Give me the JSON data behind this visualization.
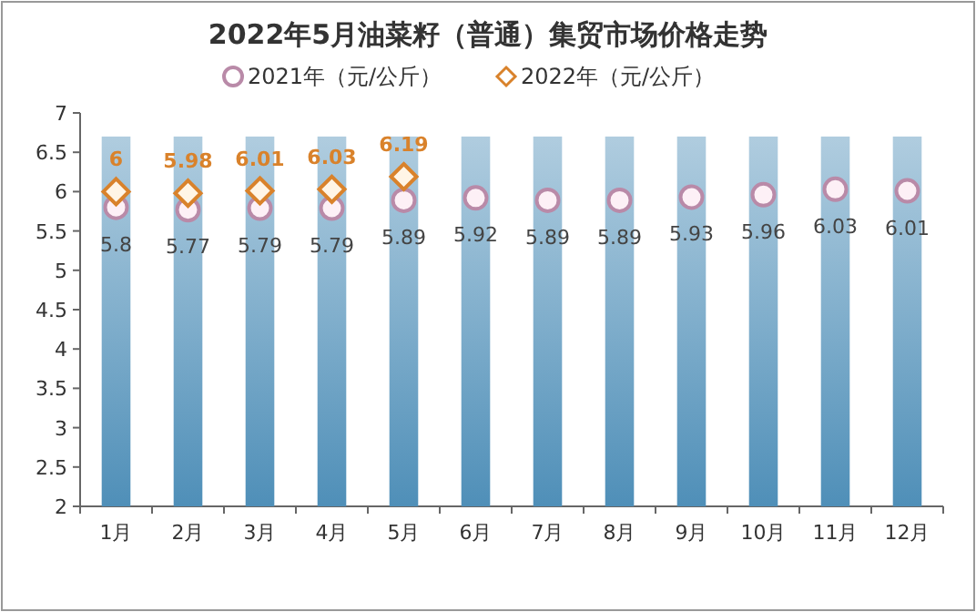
{
  "chart_data": {
    "type": "bar",
    "title": "2022年5月油菜籽（普通）集贸市场价格走势",
    "categories": [
      "1月",
      "2月",
      "3月",
      "4月",
      "5月",
      "6月",
      "7月",
      "8月",
      "9月",
      "10月",
      "11月",
      "12月"
    ],
    "series": [
      {
        "color": "#4f8fb8",
        "values": [
          6.7,
          6.7,
          6.7,
          6.7,
          6.7,
          6.7,
          6.7,
          6.7,
          6.7,
          6.7,
          6.7,
          6.7
        ]
      },
      {
        "type": "scatter",
        "name": "2021年（元/公斤）",
        "color": "#b98aa8",
        "marker": "circle",
        "values": [
          5.8,
          5.77,
          5.79,
          5.79,
          5.89,
          5.92,
          5.89,
          5.89,
          5.93,
          5.96,
          6.03,
          6.01
        ],
        "value_labels": [
          "5.8",
          "5.77",
          "5.79",
          "5.79",
          "5.89",
          "5.92",
          "5.89",
          "5.89",
          "5.93",
          "5.96",
          "6.03",
          "6.01"
        ]
      },
      {
        "type": "scatter",
        "name": "2022年（元/公斤）",
        "color": "#d9822b",
        "marker": "diamond",
        "values": [
          6,
          5.98,
          6.01,
          6.03,
          6.19,
          null,
          null,
          null,
          null,
          null,
          null,
          null
        ],
        "value_labels": [
          "6",
          "5.98",
          "6.01",
          "6.03",
          "6.19",
          null,
          null,
          null,
          null,
          null,
          null,
          null
        ]
      }
    ],
    "ylim": [
      2,
      7
    ],
    "yticks": [
      2,
      2.5,
      3,
      3.5,
      4,
      4.5,
      5,
      5.5,
      6,
      6.5,
      7
    ],
    "legend": "top",
    "grid": false
  }
}
